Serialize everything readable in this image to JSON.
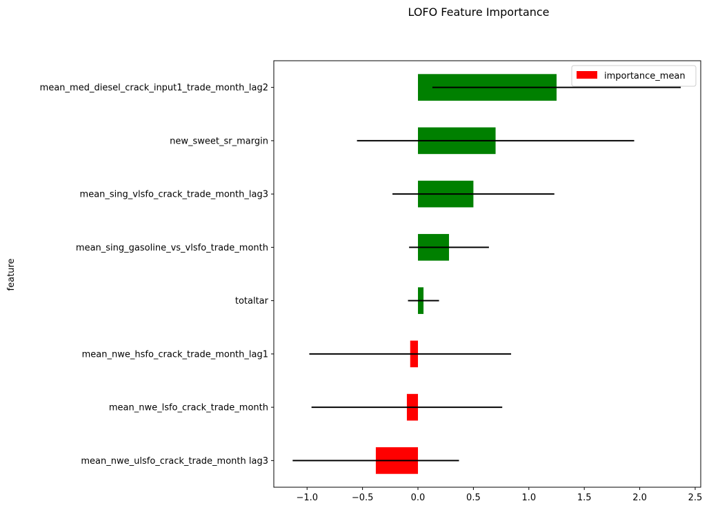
{
  "chart_data": {
    "type": "bar",
    "orientation": "horizontal",
    "title": "LOFO Feature Importance",
    "xlabel": "",
    "ylabel": "feature",
    "xlim": [
      -1.3,
      2.55
    ],
    "xticks": [
      -1.0,
      -0.5,
      0.0,
      0.5,
      1.0,
      1.5,
      2.0,
      2.5
    ],
    "xtick_labels": [
      "−1.0",
      "−0.5",
      "0.0",
      "0.5",
      "1.0",
      "1.5",
      "2.0",
      "2.5"
    ],
    "grid": false,
    "legend": {
      "position": "top-right",
      "entries": [
        "importance_mean"
      ]
    },
    "colors": {
      "positive": "#008000",
      "negative": "#ff0000",
      "errorbar": "#000000",
      "legend_swatch": "#ff0000"
    },
    "categories": [
      "mean_med_diesel_crack_input1_trade_month_lag2",
      "new_sweet_sr_margin",
      "mean_sing_vlsfo_crack_trade_month_lag3",
      "mean_sing_gasoline_vs_vlsfo_trade_month",
      "totaltar",
      "mean_nwe_hsfo_crack_trade_month_lag1",
      "mean_nwe_lsfo_crack_trade_month",
      "mean_nwe_ulsfo_crack_trade_month lag3"
    ],
    "series": [
      {
        "name": "importance_mean",
        "values": [
          1.25,
          0.7,
          0.5,
          0.28,
          0.05,
          -0.07,
          -0.1,
          -0.38
        ]
      }
    ],
    "error_std": [
      1.12,
      1.25,
      0.73,
      0.36,
      0.14,
      0.91,
      0.86,
      0.75
    ]
  }
}
